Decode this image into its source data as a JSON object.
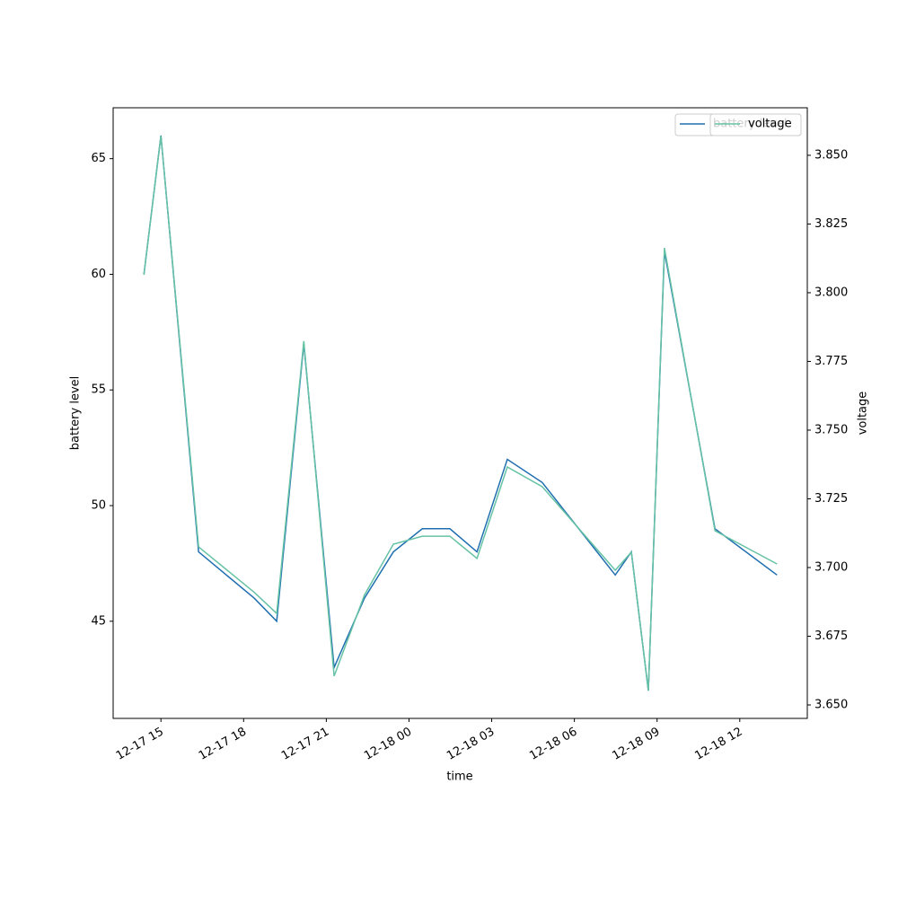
{
  "chart_data": {
    "type": "line",
    "x_label": "time",
    "y_label": "battery level",
    "y2_label": "voltage",
    "x": [
      "12-17 14:23",
      "12-17 15:00",
      "12-17 16:22",
      "12-17 18:23",
      "12-17 19:12",
      "12-17 20:11",
      "12-17 21:17",
      "12-17 22:23",
      "12-17 23:26",
      "12-18 00:29",
      "12-18 01:29",
      "12-18 02:28",
      "12-18 03:34",
      "12-18 04:50",
      "12-18 07:29",
      "12-18 08:04",
      "12-18 08:41",
      "12-18 09:16",
      "12-18 11:06",
      "12-18 13:21"
    ],
    "series": [
      {
        "name": "battery level",
        "color": "#1f6fb0",
        "axis": "y",
        "values": [
          60,
          66,
          48,
          46,
          45,
          57,
          43,
          46,
          48,
          49,
          49,
          48,
          52,
          51,
          47,
          48,
          42,
          61,
          49,
          47
        ]
      },
      {
        "name": "voltage",
        "color": "#66c2a5",
        "axis": "y2",
        "values": [
          3.8065,
          3.857,
          3.7075,
          3.691,
          3.6833,
          3.7824,
          3.6605,
          3.69,
          3.7085,
          3.7114,
          3.7114,
          3.7033,
          3.7366,
          3.7294,
          3.699,
          3.7056,
          3.6552,
          3.8163,
          3.7134,
          3.7013
        ]
      }
    ],
    "xlim": [
      "12-17 13:16",
      "12-18 14:27"
    ],
    "xticks": [
      {
        "value": "12-17 15:00",
        "label": "12-17 15"
      },
      {
        "value": "12-17 18:00",
        "label": "12-17 18"
      },
      {
        "value": "12-17 21:00",
        "label": "12-17 21"
      },
      {
        "value": "12-18 00:00",
        "label": "12-18 00"
      },
      {
        "value": "12-18 03:00",
        "label": "12-18 03"
      },
      {
        "value": "12-18 06:00",
        "label": "12-18 06"
      },
      {
        "value": "12-18 09:00",
        "label": "12-18 09"
      },
      {
        "value": "12-18 12:00",
        "label": "12-18 12"
      }
    ],
    "ylim": [
      40.8,
      67.2
    ],
    "yticks": [
      45,
      50,
      55,
      60,
      65
    ],
    "y2lim": [
      3.6451,
      3.8673
    ],
    "y2ticks": [
      {
        "value": 3.65,
        "label": "3.650"
      },
      3.675,
      {
        "value": 3.7,
        "label": "3.700"
      },
      3.725,
      {
        "value": 3.75,
        "label": "3.750"
      },
      3.775,
      {
        "value": 3.8,
        "label": "3.800"
      },
      3.825,
      {
        "value": 3.85,
        "label": "3.850"
      }
    ],
    "grid": false,
    "legend": "upper right"
  }
}
